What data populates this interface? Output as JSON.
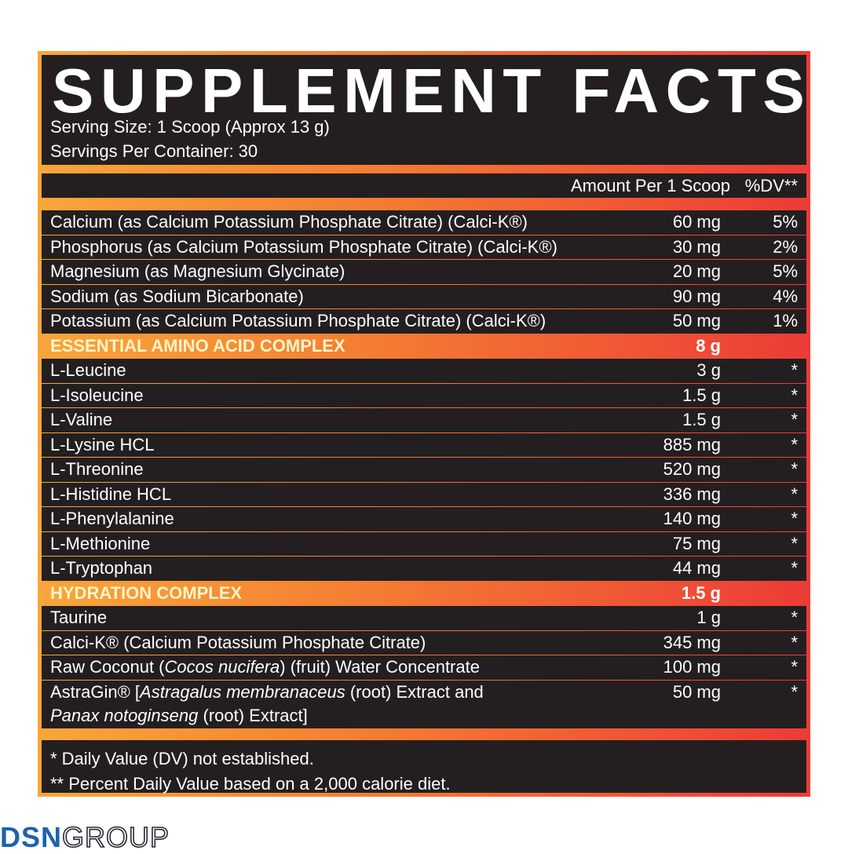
{
  "header": {
    "title": "SUPPLEMENT FACTS",
    "serving_size": "Serving Size: 1 Scoop (Approx 13 g)",
    "servings_per_container": "Servings Per Container: 30"
  },
  "table": {
    "columns": [
      "Amount Per 1 Scoop",
      "%DV**"
    ],
    "rows": [
      {
        "name": "Calcium (as Calcium Potassium Phosphate Citrate) (Calci-K®)",
        "amount": "60 mg",
        "dv": "5%"
      },
      {
        "name": "Phosphorus (as Calcium Potassium Phosphate Citrate) (Calci-K®)",
        "amount": "30 mg",
        "dv": "2%"
      },
      {
        "name": "Magnesium (as Magnesium Glycinate)",
        "amount": "20 mg",
        "dv": "5%"
      },
      {
        "name": "Sodium (as Sodium Bicarbonate)",
        "amount": "90 mg",
        "dv": "4%"
      },
      {
        "name": "Potassium (as Calcium Potassium Phosphate Citrate) (Calci-K®)",
        "amount": "50 mg",
        "dv": "1%"
      },
      {
        "name": "ESSENTIAL AMINO ACID COMPLEX",
        "amount": "8 g",
        "section": true
      },
      {
        "name": "L-Leucine",
        "amount": "3 g",
        "dv": "*"
      },
      {
        "name": "L-Isoleucine",
        "amount": "1.5 g",
        "dv": "*"
      },
      {
        "name": "L-Valine",
        "amount": "1.5 g",
        "dv": "*"
      },
      {
        "name": "L-Lysine HCL",
        "amount": "885 mg",
        "dv": "*"
      },
      {
        "name": "L-Threonine",
        "amount": "520 mg",
        "dv": "*"
      },
      {
        "name": "L-Histidine HCL",
        "amount": "336 mg",
        "dv": "*"
      },
      {
        "name": "L-Phenylalanine",
        "amount": "140 mg",
        "dv": "*"
      },
      {
        "name": "L-Methionine",
        "amount": "75 mg",
        "dv": "*"
      },
      {
        "name": "L-Tryptophan",
        "amount": "44 mg",
        "dv": "*"
      },
      {
        "name": "HYDRATION COMPLEX",
        "amount": "1.5 g",
        "section": true
      },
      {
        "name": "Taurine",
        "amount": "1 g",
        "dv": "*"
      },
      {
        "name": "Calci-K® (Calcium Potassium Phosphate Citrate)",
        "amount": "345 mg",
        "dv": "*"
      },
      {
        "name": [
          {
            "text": "Raw Coconut (",
            "italic": false
          },
          {
            "text": "Cocos nucifera",
            "italic": true
          },
          {
            "text": ") (fruit) Water Concentrate",
            "italic": false
          }
        ],
        "amount": "100 mg",
        "dv": "*"
      },
      {
        "name": [
          {
            "text": "AstraGin® [",
            "italic": false
          },
          {
            "text": "Astragalus membranaceus",
            "italic": true
          },
          {
            "text": " (root) Extract and ",
            "italic": false
          },
          {
            "text": "Panax notoginseng",
            "italic": true
          },
          {
            "text": " (root) Extract]",
            "italic": false
          }
        ],
        "amount": "50 mg",
        "dv": "*"
      }
    ]
  },
  "footnotes": [
    "* Daily Value (DV) not established.",
    "** Percent Daily Value based on a 2,000 calorie diet."
  ],
  "logo": {
    "bold": "DSN",
    "light": "GROUP"
  }
}
